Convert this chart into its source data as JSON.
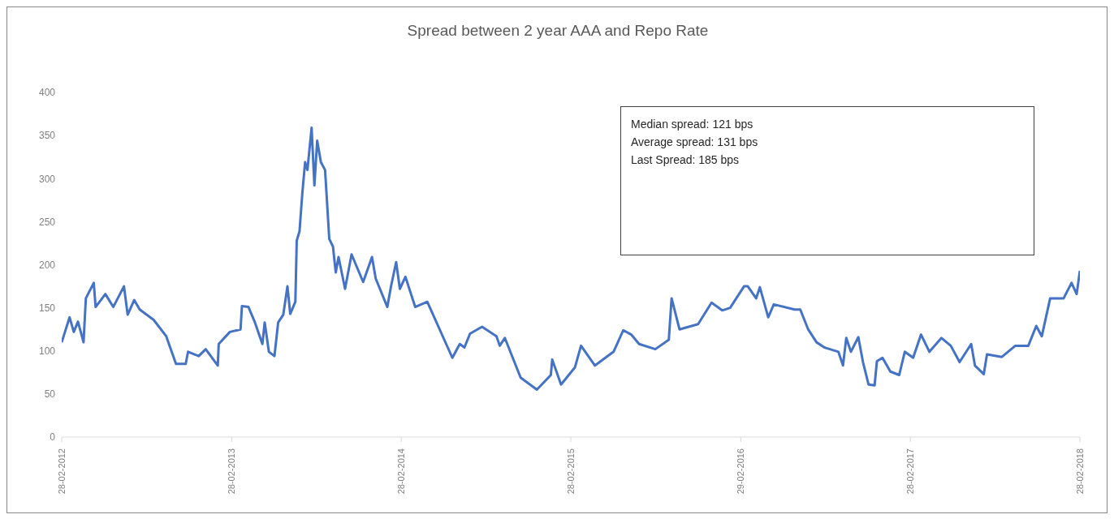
{
  "chart_data": {
    "type": "line",
    "title": "Spread between  2 year AAA and Repo Rate",
    "x": [
      "2012-02-28",
      "2012-03-16",
      "2012-03-25",
      "2012-04-03",
      "2012-04-15",
      "2012-04-20",
      "2012-05-07",
      "2012-05-11",
      "2012-06-01",
      "2012-06-18",
      "2012-07-11",
      "2012-07-19",
      "2012-08-02",
      "2012-08-14",
      "2012-09-13",
      "2012-10-10",
      "2012-10-31",
      "2012-11-21",
      "2012-11-26",
      "2012-12-19",
      "2013-01-03",
      "2013-01-29",
      "2013-01-31",
      "2013-02-24",
      "2013-03-19",
      "2013-03-22",
      "2013-04-05",
      "2013-04-19",
      "2013-05-05",
      "2013-05-10",
      "2013-05-19",
      "2013-05-31",
      "2013-06-08",
      "2013-06-19",
      "2013-06-28",
      "2013-07-04",
      "2013-07-15",
      "2013-07-18",
      "2013-07-24",
      "2013-07-30",
      "2013-08-05",
      "2013-08-10",
      "2013-08-19",
      "2013-08-25",
      "2013-08-31",
      "2013-09-08",
      "2013-09-17",
      "2013-09-26",
      "2013-10-04",
      "2013-10-10",
      "2013-10-16",
      "2013-10-30",
      "2013-11-13",
      "2013-12-08",
      "2013-12-27",
      "2014-01-04",
      "2014-01-29",
      "2014-02-06",
      "2014-02-17",
      "2014-02-25",
      "2014-03-09",
      "2014-03-30",
      "2014-04-25",
      "2014-06-18",
      "2014-07-04",
      "2014-07-14",
      "2014-07-26",
      "2014-08-21",
      "2014-09-21",
      "2014-09-28",
      "2014-10-09",
      "2014-11-12",
      "2014-12-17",
      "2015-01-16",
      "2015-01-19",
      "2015-02-07",
      "2015-03-09",
      "2015-03-22",
      "2015-04-21",
      "2015-05-31",
      "2015-06-21",
      "2015-07-08",
      "2015-07-25",
      "2015-08-29",
      "2015-09-27",
      "2015-10-03",
      "2015-10-20",
      "2015-11-29",
      "2015-12-28",
      "2016-01-20",
      "2016-02-06",
      "2016-03-07",
      "2016-03-15",
      "2016-04-02",
      "2016-04-10",
      "2016-04-28",
      "2016-05-10",
      "2016-06-24",
      "2016-07-06",
      "2016-07-23",
      "2016-08-10",
      "2016-08-27",
      "2016-09-26",
      "2016-10-06",
      "2016-10-13",
      "2016-10-23",
      "2016-11-08",
      "2016-11-18",
      "2016-11-30",
      "2016-12-13",
      "2016-12-18",
      "2016-12-30",
      "2017-01-16",
      "2017-02-04",
      "2017-02-16",
      "2017-03-06",
      "2017-03-23",
      "2017-04-10",
      "2017-05-06",
      "2017-05-26",
      "2017-06-14",
      "2017-07-09",
      "2017-07-17",
      "2017-08-05",
      "2017-08-12",
      "2017-09-13",
      "2017-10-12",
      "2017-11-09",
      "2017-11-26",
      "2017-12-08",
      "2017-12-26",
      "2018-01-24",
      "2018-02-10",
      "2018-02-21",
      "2018-02-28"
    ],
    "series": [
      {
        "color": "#4472c4",
        "values": [
          110,
          139,
          122,
          134,
          110,
          161,
          179,
          151,
          166,
          151,
          175,
          142,
          159,
          148,
          136,
          117,
          85,
          85,
          99,
          94,
          102,
          83,
          108,
          122,
          125,
          152,
          151,
          133,
          108,
          133,
          99,
          94,
          133,
          142,
          175,
          143,
          157,
          228,
          239,
          283,
          319,
          310,
          359,
          292,
          344,
          319,
          310,
          230,
          221,
          191,
          209,
          172,
          212,
          180,
          209,
          184,
          151,
          175,
          203,
          172,
          186,
          151,
          157,
          92,
          108,
          104,
          120,
          128,
          117,
          106,
          115,
          69,
          55,
          72,
          90,
          61,
          81,
          106,
          83,
          99,
          124,
          119,
          108,
          102,
          113,
          161,
          125,
          131,
          156,
          147,
          150,
          175,
          175,
          161,
          174,
          139,
          154,
          148,
          148,
          125,
          110,
          104,
          99,
          83,
          115,
          99,
          116,
          87,
          61,
          60,
          88,
          92,
          76,
          72,
          99,
          92,
          119,
          99,
          115,
          106,
          87,
          108,
          83,
          73,
          96,
          93,
          106,
          106,
          129,
          117,
          161,
          161,
          179,
          166,
          193
        ]
      }
    ],
    "xlim": [
      "2012-02-28",
      "2018-02-28"
    ],
    "xticks": [
      {
        "value": "2012-02-28",
        "label": "28-02-2012"
      },
      {
        "value": "2013-02-28",
        "label": "28-02-2013"
      },
      {
        "value": "2014-02-28",
        "label": "28-02-2014"
      },
      {
        "value": "2015-02-28",
        "label": "28-02-2015"
      },
      {
        "value": "2016-02-29",
        "label": "29-02-2016"
      },
      {
        "value": "2017-02-28",
        "label": "28-02-2017"
      },
      {
        "value": "2018-02-28",
        "label": "28-02-2018"
      }
    ],
    "ylim": [
      0,
      400
    ],
    "yticks": [
      0,
      50,
      100,
      150,
      200,
      250,
      300,
      350,
      400
    ],
    "marker": "none",
    "line_style": "solid",
    "annotations": [
      "Median spread: 121 bps",
      "Average spread: 131 bps",
      "Last Spread: 185  bps"
    ]
  }
}
